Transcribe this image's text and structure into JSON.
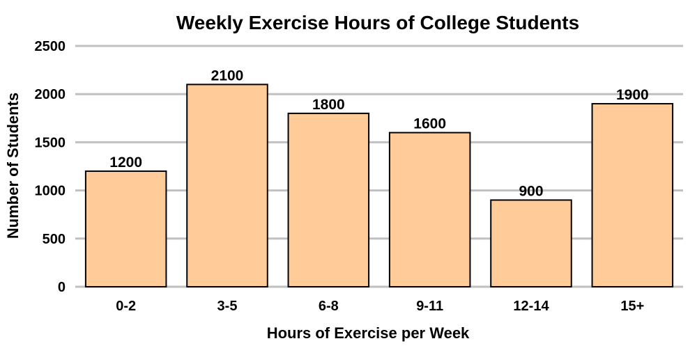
{
  "chart_data": {
    "type": "bar",
    "title": "Weekly Exercise Hours of College Students",
    "xlabel": "Hours of Exercise per Week",
    "ylabel": "Number of Students",
    "categories": [
      "0-2",
      "3-5",
      "6-8",
      "9-11",
      "12-14",
      "15+"
    ],
    "values": [
      1200,
      2100,
      1800,
      1600,
      900,
      1900
    ],
    "ylim": [
      0,
      2500
    ],
    "yticks": [
      0,
      500,
      1000,
      1500,
      2000,
      2500
    ],
    "grid": true,
    "bar_color": "#ffcc99",
    "bar_edge_color": "#000000",
    "grid_color": "#c0c0c0"
  }
}
